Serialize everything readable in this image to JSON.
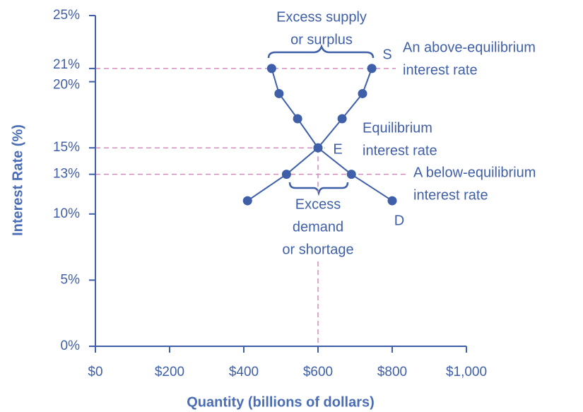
{
  "chart_data": {
    "type": "line",
    "xlabel": "Quantity (billions of dollars)",
    "ylabel": "Interest Rate (%)",
    "xlim": [
      0,
      1000
    ],
    "xticks": [
      {
        "value": 0,
        "label": "$0"
      },
      {
        "value": 200,
        "label": "$200"
      },
      {
        "value": 400,
        "label": "$400"
      },
      {
        "value": 600,
        "label": "$600"
      },
      {
        "value": 800,
        "label": "$800"
      },
      {
        "value": 1000,
        "label": "$1,000"
      }
    ],
    "ylim": [
      0,
      25
    ],
    "yticks": [
      {
        "value": 0,
        "label": "0%"
      },
      {
        "value": 5,
        "label": "5%"
      },
      {
        "value": 10,
        "label": "10%"
      },
      {
        "value": 13,
        "label": "13%"
      },
      {
        "value": 15,
        "label": "15%"
      },
      {
        "value": 20,
        "label": "20%"
      },
      {
        "value": 21,
        "label": "21%"
      },
      {
        "value": 25,
        "label": "25%"
      }
    ],
    "series": [
      {
        "name": "S",
        "color": "#3f5fa9",
        "x": [
          410,
          515,
          600,
          665,
          720,
          745
        ],
        "values": [
          11,
          13,
          15,
          17.2,
          19.1,
          21
        ]
      },
      {
        "name": "D",
        "color": "#3f5fa9",
        "x": [
          475,
          495,
          545,
          600,
          690,
          800
        ],
        "values": [
          21,
          19.1,
          17.2,
          15,
          13,
          11
        ]
      }
    ],
    "reference_lines": {
      "color": "#d98ac0",
      "y": [
        21,
        15,
        13
      ],
      "x": [
        600
      ]
    },
    "annotations": [
      {
        "lines": [
          "Excess supply",
          "or surplus"
        ]
      },
      {
        "lines": [
          "An above-equilibrium",
          "interest rate"
        ]
      },
      {
        "lines": [
          "E"
        ]
      },
      {
        "lines": [
          "Equilibrium",
          "interest rate"
        ]
      },
      {
        "lines": [
          "A below-equilibrium",
          "interest rate"
        ]
      },
      {
        "lines": [
          "Excess",
          "demand",
          "or shortage"
        ]
      }
    ]
  }
}
